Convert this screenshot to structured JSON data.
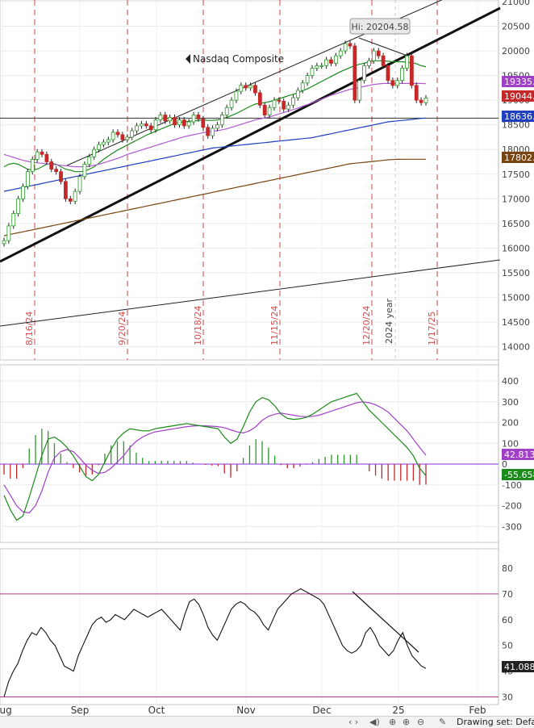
{
  "chart_data": [
    {
      "type": "candlestick",
      "title": "Nasdaq Composite",
      "y_ticks": [
        21000,
        20500,
        20000,
        19500,
        19000,
        18500,
        18000,
        17500,
        17000,
        16500,
        16000,
        15500,
        15000,
        14500,
        14000
      ],
      "ylim": [
        13800,
        21000
      ],
      "x_ticks": [
        "Aug",
        "Sep",
        "Oct",
        "Nov",
        "Dec",
        "25",
        "Feb"
      ],
      "annotation": "Hi: 20204.58",
      "value_badges": [
        {
          "value": "19335.5",
          "color": "#a040c8"
        },
        {
          "value": "19044.3",
          "color": "#c62828"
        },
        {
          "value": "18636.2",
          "color": "#1f3fbf"
        },
        {
          "value": "17802.7",
          "color": "#7a4410"
        }
      ],
      "reference_level": 18636.2,
      "event_labels": [
        "8/16/24",
        "9/20/24",
        "10/18/24",
        "11/15/24",
        "12/20/24",
        "1/17/25"
      ],
      "year_label": "2024 year",
      "closes": [
        16150,
        16450,
        16700,
        17000,
        17250,
        17550,
        17800,
        17950,
        17900,
        17750,
        17600,
        17550,
        17350,
        17000,
        16950,
        17150,
        17450,
        17700,
        17850,
        18000,
        18100,
        18150,
        18200,
        18350,
        18300,
        18200,
        18250,
        18380,
        18480,
        18520,
        18480,
        18400,
        18600,
        18700,
        18580,
        18650,
        18500,
        18600,
        18480,
        18560,
        18700,
        18620,
        18450,
        18280,
        18430,
        18500,
        18700,
        18850,
        19000,
        19180,
        19300,
        19250,
        19300,
        19150,
        18900,
        18700,
        18850,
        19000,
        18980,
        18820,
        18900,
        19050,
        19200,
        19350,
        19500,
        19650,
        19700,
        19700,
        19820,
        19750,
        19900,
        20000,
        20150,
        20100,
        19000,
        19400,
        19700,
        19800,
        20000,
        19900,
        19700,
        19400,
        19300,
        19400,
        19650,
        19900,
        19300,
        19000,
        18950,
        19044.3
      ],
      "series": [
        {
          "name": "MA 20",
          "color": "#1a8a1a",
          "values": [
            17650,
            17700,
            17720,
            17700,
            17650,
            17600,
            17580,
            17600,
            17650,
            17700,
            17720,
            17700,
            17650,
            17600,
            17580,
            17550,
            17550,
            17560,
            17600,
            17650,
            17720,
            17800,
            17870,
            17930,
            17990,
            18040,
            18090,
            18140,
            18190,
            18240,
            18290,
            18330,
            18370,
            18410,
            18450,
            18490,
            18530,
            18550,
            18560,
            18570,
            18580,
            18590,
            18600,
            18590,
            18590,
            18600,
            18620,
            18650,
            18690,
            18730,
            18780,
            18830,
            18880,
            18920,
            18940,
            18950,
            18970,
            19000,
            19030,
            19060,
            19090,
            19120,
            19150,
            19190,
            19230,
            19280,
            19330,
            19380,
            19430,
            19480,
            19530,
            19580,
            19620,
            19660,
            19700,
            19730,
            19750,
            19780,
            19800,
            19800,
            19800,
            19790,
            19780,
            19780,
            19780,
            19770,
            19760,
            19740,
            19700,
            19680
          ]
        },
        {
          "name": "MA 50",
          "color": "#b05ad0",
          "values": [
            17900,
            17870,
            17840,
            17810,
            17780,
            17760,
            17740,
            17730,
            17720,
            17710,
            17700,
            17690,
            17680,
            17670,
            17660,
            17650,
            17650,
            17650,
            17660,
            17680,
            17700,
            17730,
            17760,
            17790,
            17820,
            17860,
            17900,
            17930,
            17960,
            17990,
            18020,
            18050,
            18080,
            18110,
            18140,
            18170,
            18200,
            18230,
            18260,
            18280,
            18300,
            18320,
            18340,
            18360,
            18370,
            18380,
            18400,
            18420,
            18450,
            18480,
            18510,
            18540,
            18570,
            18600,
            18620,
            18640,
            18660,
            18690,
            18720,
            18750,
            18780,
            18810,
            18840,
            18880,
            18910,
            18950,
            18990,
            19020,
            19060,
            19100,
            19130,
            19160,
            19190,
            19220,
            19240,
            19260,
            19280,
            19300,
            19320,
            19330,
            19340,
            19340,
            19340,
            19340,
            19340,
            19340,
            19340,
            19340,
            19340,
            19335.5
          ]
        },
        {
          "name": "MA 100",
          "color": "#1f3fbf",
          "values": [
            17150,
            17170,
            17190,
            17210,
            17230,
            17250,
            17270,
            17290,
            17310,
            17330,
            17350,
            17370,
            17390,
            17410,
            17430,
            17450,
            17470,
            17490,
            17510,
            17530,
            17550,
            17570,
            17590,
            17610,
            17630,
            17650,
            17670,
            17690,
            17710,
            17730,
            17750,
            17770,
            17790,
            17810,
            17830,
            17850,
            17870,
            17890,
            17910,
            17930,
            17950,
            17970,
            17990,
            18010,
            18030,
            18040,
            18050,
            18060,
            18070,
            18080,
            18090,
            18100,
            18110,
            18120,
            18130,
            18140,
            18150,
            18160,
            18170,
            18180,
            18190,
            18200,
            18210,
            18220,
            18230,
            18240,
            18260,
            18280,
            18300,
            18320,
            18340,
            18360,
            18380,
            18400,
            18420,
            18440,
            18460,
            18480,
            18500,
            18520,
            18540,
            18560,
            18570,
            18580,
            18590,
            18600,
            18610,
            18620,
            18630,
            18636.2
          ]
        },
        {
          "name": "MA 200",
          "color": "#7a4410",
          "values": [
            16250,
            16270,
            16290,
            16310,
            16330,
            16350,
            16370,
            16390,
            16410,
            16430,
            16450,
            16470,
            16490,
            16510,
            16530,
            16550,
            16570,
            16590,
            16610,
            16630,
            16650,
            16670,
            16690,
            16710,
            16730,
            16750,
            16770,
            16790,
            16810,
            16830,
            16850,
            16870,
            16890,
            16910,
            16930,
            16950,
            16970,
            16990,
            17010,
            17030,
            17050,
            17070,
            17090,
            17110,
            17130,
            17150,
            17170,
            17190,
            17210,
            17230,
            17250,
            17270,
            17290,
            17310,
            17330,
            17350,
            17370,
            17390,
            17410,
            17430,
            17450,
            17470,
            17490,
            17510,
            17530,
            17550,
            17570,
            17590,
            17610,
            17630,
            17650,
            17670,
            17690,
            17710,
            17720,
            17730,
            17740,
            17750,
            17760,
            17770,
            17780,
            17790,
            17795,
            17800,
            17802.7,
            17802.7,
            17802.7,
            17802.7,
            17802.7,
            17802.7
          ]
        }
      ]
    },
    {
      "type": "bar+line",
      "name": "MACD",
      "y_ticks": [
        400,
        300,
        200,
        100,
        0,
        -100,
        -200,
        -300
      ],
      "ylim": [
        -380,
        430
      ],
      "value_badges": [
        {
          "value": "42.8137",
          "color": "#a040c8"
        },
        {
          "value": "-55.658",
          "color": "#1a8a1a"
        }
      ],
      "macd_values": [
        -150,
        -220,
        -270,
        -250,
        -160,
        -60,
        40,
        120,
        130,
        110,
        80,
        40,
        -10,
        -60,
        -80,
        -50,
        10,
        70,
        120,
        150,
        170,
        165,
        160,
        160,
        170,
        175,
        180,
        185,
        190,
        195,
        190,
        185,
        180,
        175,
        170,
        130,
        100,
        120,
        180,
        250,
        300,
        320,
        310,
        280,
        240,
        220,
        215,
        218,
        225,
        240,
        260,
        280,
        300,
        310,
        320,
        330,
        340,
        300,
        260,
        230,
        200,
        170,
        140,
        110,
        80,
        40,
        -20,
        -55.658
      ],
      "signal_values": [
        -100,
        -150,
        -200,
        -230,
        -235,
        -200,
        -130,
        -40,
        30,
        60,
        70,
        60,
        30,
        -5,
        -30,
        -45,
        -40,
        -20,
        10,
        40,
        80,
        110,
        130,
        145,
        155,
        160,
        165,
        170,
        175,
        180,
        183,
        185,
        184,
        182,
        180,
        175,
        165,
        155,
        150,
        160,
        180,
        210,
        230,
        240,
        245,
        240,
        235,
        230,
        228,
        230,
        235,
        245,
        255,
        265,
        275,
        285,
        295,
        300,
        295,
        285,
        270,
        250,
        220,
        190,
        160,
        120,
        80,
        42.8137
      ]
    },
    {
      "type": "line",
      "name": "RSI",
      "y_ticks": [
        80,
        70,
        60,
        50,
        40,
        30
      ],
      "ylim": [
        28,
        84
      ],
      "levels": [
        70,
        30
      ],
      "value_badges": [
        {
          "value": "41.0885",
          "color": "#222222"
        }
      ],
      "values": [
        30,
        36,
        40,
        43,
        48,
        52,
        55,
        54,
        57,
        55,
        52,
        50,
        46,
        42,
        41,
        40,
        46,
        50,
        54,
        58,
        60,
        61,
        59,
        60,
        62,
        61,
        60,
        62,
        64,
        63,
        62,
        61,
        62,
        63,
        64,
        62,
        60,
        58,
        56,
        62,
        67,
        68,
        66,
        62,
        57,
        54,
        52,
        56,
        60,
        64,
        66,
        67,
        66,
        64,
        63,
        61,
        58,
        56,
        60,
        64,
        66,
        68,
        70,
        71,
        72,
        71,
        70,
        69,
        68,
        66,
        62,
        58,
        54,
        50,
        48,
        47,
        48,
        50,
        55,
        57,
        54,
        50,
        48,
        46,
        48,
        52,
        55,
        50,
        46,
        44,
        42,
        41.0885
      ]
    }
  ],
  "footer": {
    "drawing_set": "Drawing set: Defau"
  }
}
